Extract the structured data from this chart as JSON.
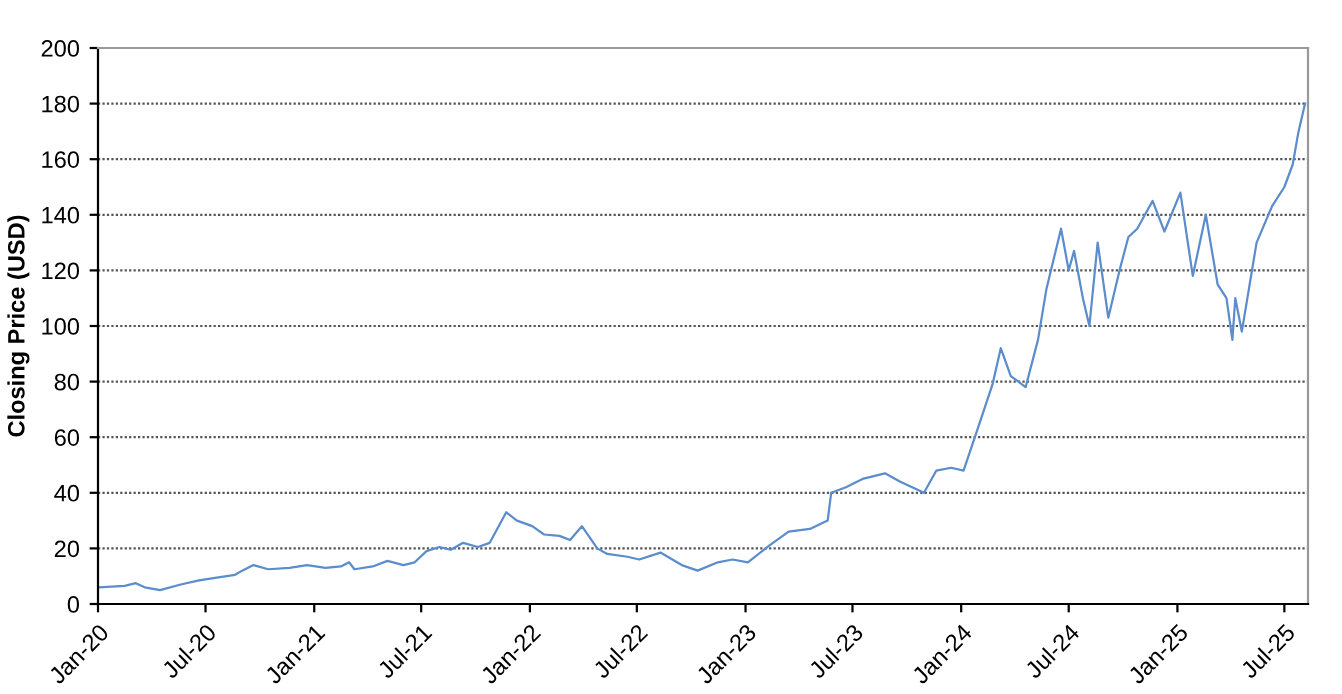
{
  "chart_data": {
    "type": "line",
    "ylabel": "Closing Price (USD)",
    "x": [
      "2020-01-02",
      "2020-02-15",
      "2020-03-05",
      "2020-03-20",
      "2020-04-15",
      "2020-05-20",
      "2020-06-20",
      "2020-07-20",
      "2020-08-20",
      "2020-09-01",
      "2020-09-20",
      "2020-10-15",
      "2020-11-20",
      "2020-12-20",
      "2021-01-20",
      "2021-02-15",
      "2021-03-01",
      "2021-03-10",
      "2021-04-10",
      "2021-05-05",
      "2021-06-01",
      "2021-06-20",
      "2021-07-10",
      "2021-08-01",
      "2021-08-20",
      "2021-09-10",
      "2021-10-05",
      "2021-10-25",
      "2021-11-22",
      "2021-12-10",
      "2022-01-05",
      "2022-01-25",
      "2022-02-20",
      "2022-03-10",
      "2022-03-30",
      "2022-04-25",
      "2022-05-12",
      "2022-06-15",
      "2022-07-05",
      "2022-08-10",
      "2022-09-15",
      "2022-10-12",
      "2022-11-15",
      "2022-12-10",
      "2023-01-05",
      "2023-02-10",
      "2023-03-15",
      "2023-04-20",
      "2023-05-20",
      "2023-05-26",
      "2023-06-20",
      "2023-07-18",
      "2023-08-25",
      "2023-09-20",
      "2023-10-10",
      "2023-10-30",
      "2023-11-20",
      "2023-12-15",
      "2024-01-05",
      "2024-02-01",
      "2024-02-23",
      "2024-03-08",
      "2024-03-25",
      "2024-04-19",
      "2024-05-10",
      "2024-05-24",
      "2024-06-18",
      "2024-07-01",
      "2024-07-10",
      "2024-07-25",
      "2024-08-05",
      "2024-08-19",
      "2024-09-06",
      "2024-09-25",
      "2024-10-10",
      "2024-10-25",
      "2024-11-07",
      "2024-11-20",
      "2024-12-10",
      "2025-01-06",
      "2025-01-27",
      "2025-02-18",
      "2025-03-10",
      "2025-03-25",
      "2025-04-04",
      "2025-04-09",
      "2025-04-20",
      "2025-05-15",
      "2025-06-10",
      "2025-07-01",
      "2025-07-15",
      "2025-07-25",
      "2025-08-05"
    ],
    "series": [
      {
        "color": "#5b8ccc",
        "values": [
          6,
          6.5,
          7.5,
          6,
          5,
          7,
          8.5,
          9.5,
          10.5,
          12,
          14,
          12.5,
          13,
          14,
          13,
          13.5,
          15,
          12.5,
          13.5,
          15.5,
          14,
          15,
          19,
          20.5,
          19.5,
          22,
          20.5,
          22,
          33,
          30,
          28,
          25,
          24.5,
          23,
          28,
          20,
          18,
          17,
          16,
          18.5,
          14,
          12,
          15,
          16,
          15,
          21,
          26,
          27,
          30,
          40,
          42,
          45,
          47,
          44,
          42,
          40,
          48,
          49,
          48,
          65,
          79,
          92,
          82,
          78,
          95,
          113,
          135,
          120,
          127,
          110,
          100,
          130,
          103,
          120,
          132,
          135,
          140,
          145,
          134,
          148,
          118,
          140,
          115,
          110,
          95,
          110,
          98,
          130,
          143,
          150,
          158,
          170,
          180
        ]
      }
    ],
    "ylim": [
      0,
      200
    ],
    "yticks": [
      0,
      20,
      40,
      60,
      80,
      100,
      120,
      140,
      160,
      180,
      200
    ],
    "xlim": [
      "2020-01-01",
      "2025-08-10"
    ],
    "xticks": [
      {
        "value": "2020-01-01",
        "label": "Jan-20"
      },
      {
        "value": "2020-07-01",
        "label": "Jul-20"
      },
      {
        "value": "2021-01-01",
        "label": "Jan-21"
      },
      {
        "value": "2021-07-01",
        "label": "Jul-21"
      },
      {
        "value": "2022-01-01",
        "label": "Jan-22"
      },
      {
        "value": "2022-07-01",
        "label": "Jul-22"
      },
      {
        "value": "2023-01-01",
        "label": "Jan-23"
      },
      {
        "value": "2023-07-01",
        "label": "Jul-23"
      },
      {
        "value": "2024-01-01",
        "label": "Jan-24"
      },
      {
        "value": "2024-07-01",
        "label": "Jul-24"
      },
      {
        "value": "2025-01-01",
        "label": "Jan-25"
      },
      {
        "value": "2025-07-01",
        "label": "Jul-25"
      }
    ],
    "grid": "y",
    "marker": "none",
    "line_style": "solid"
  }
}
